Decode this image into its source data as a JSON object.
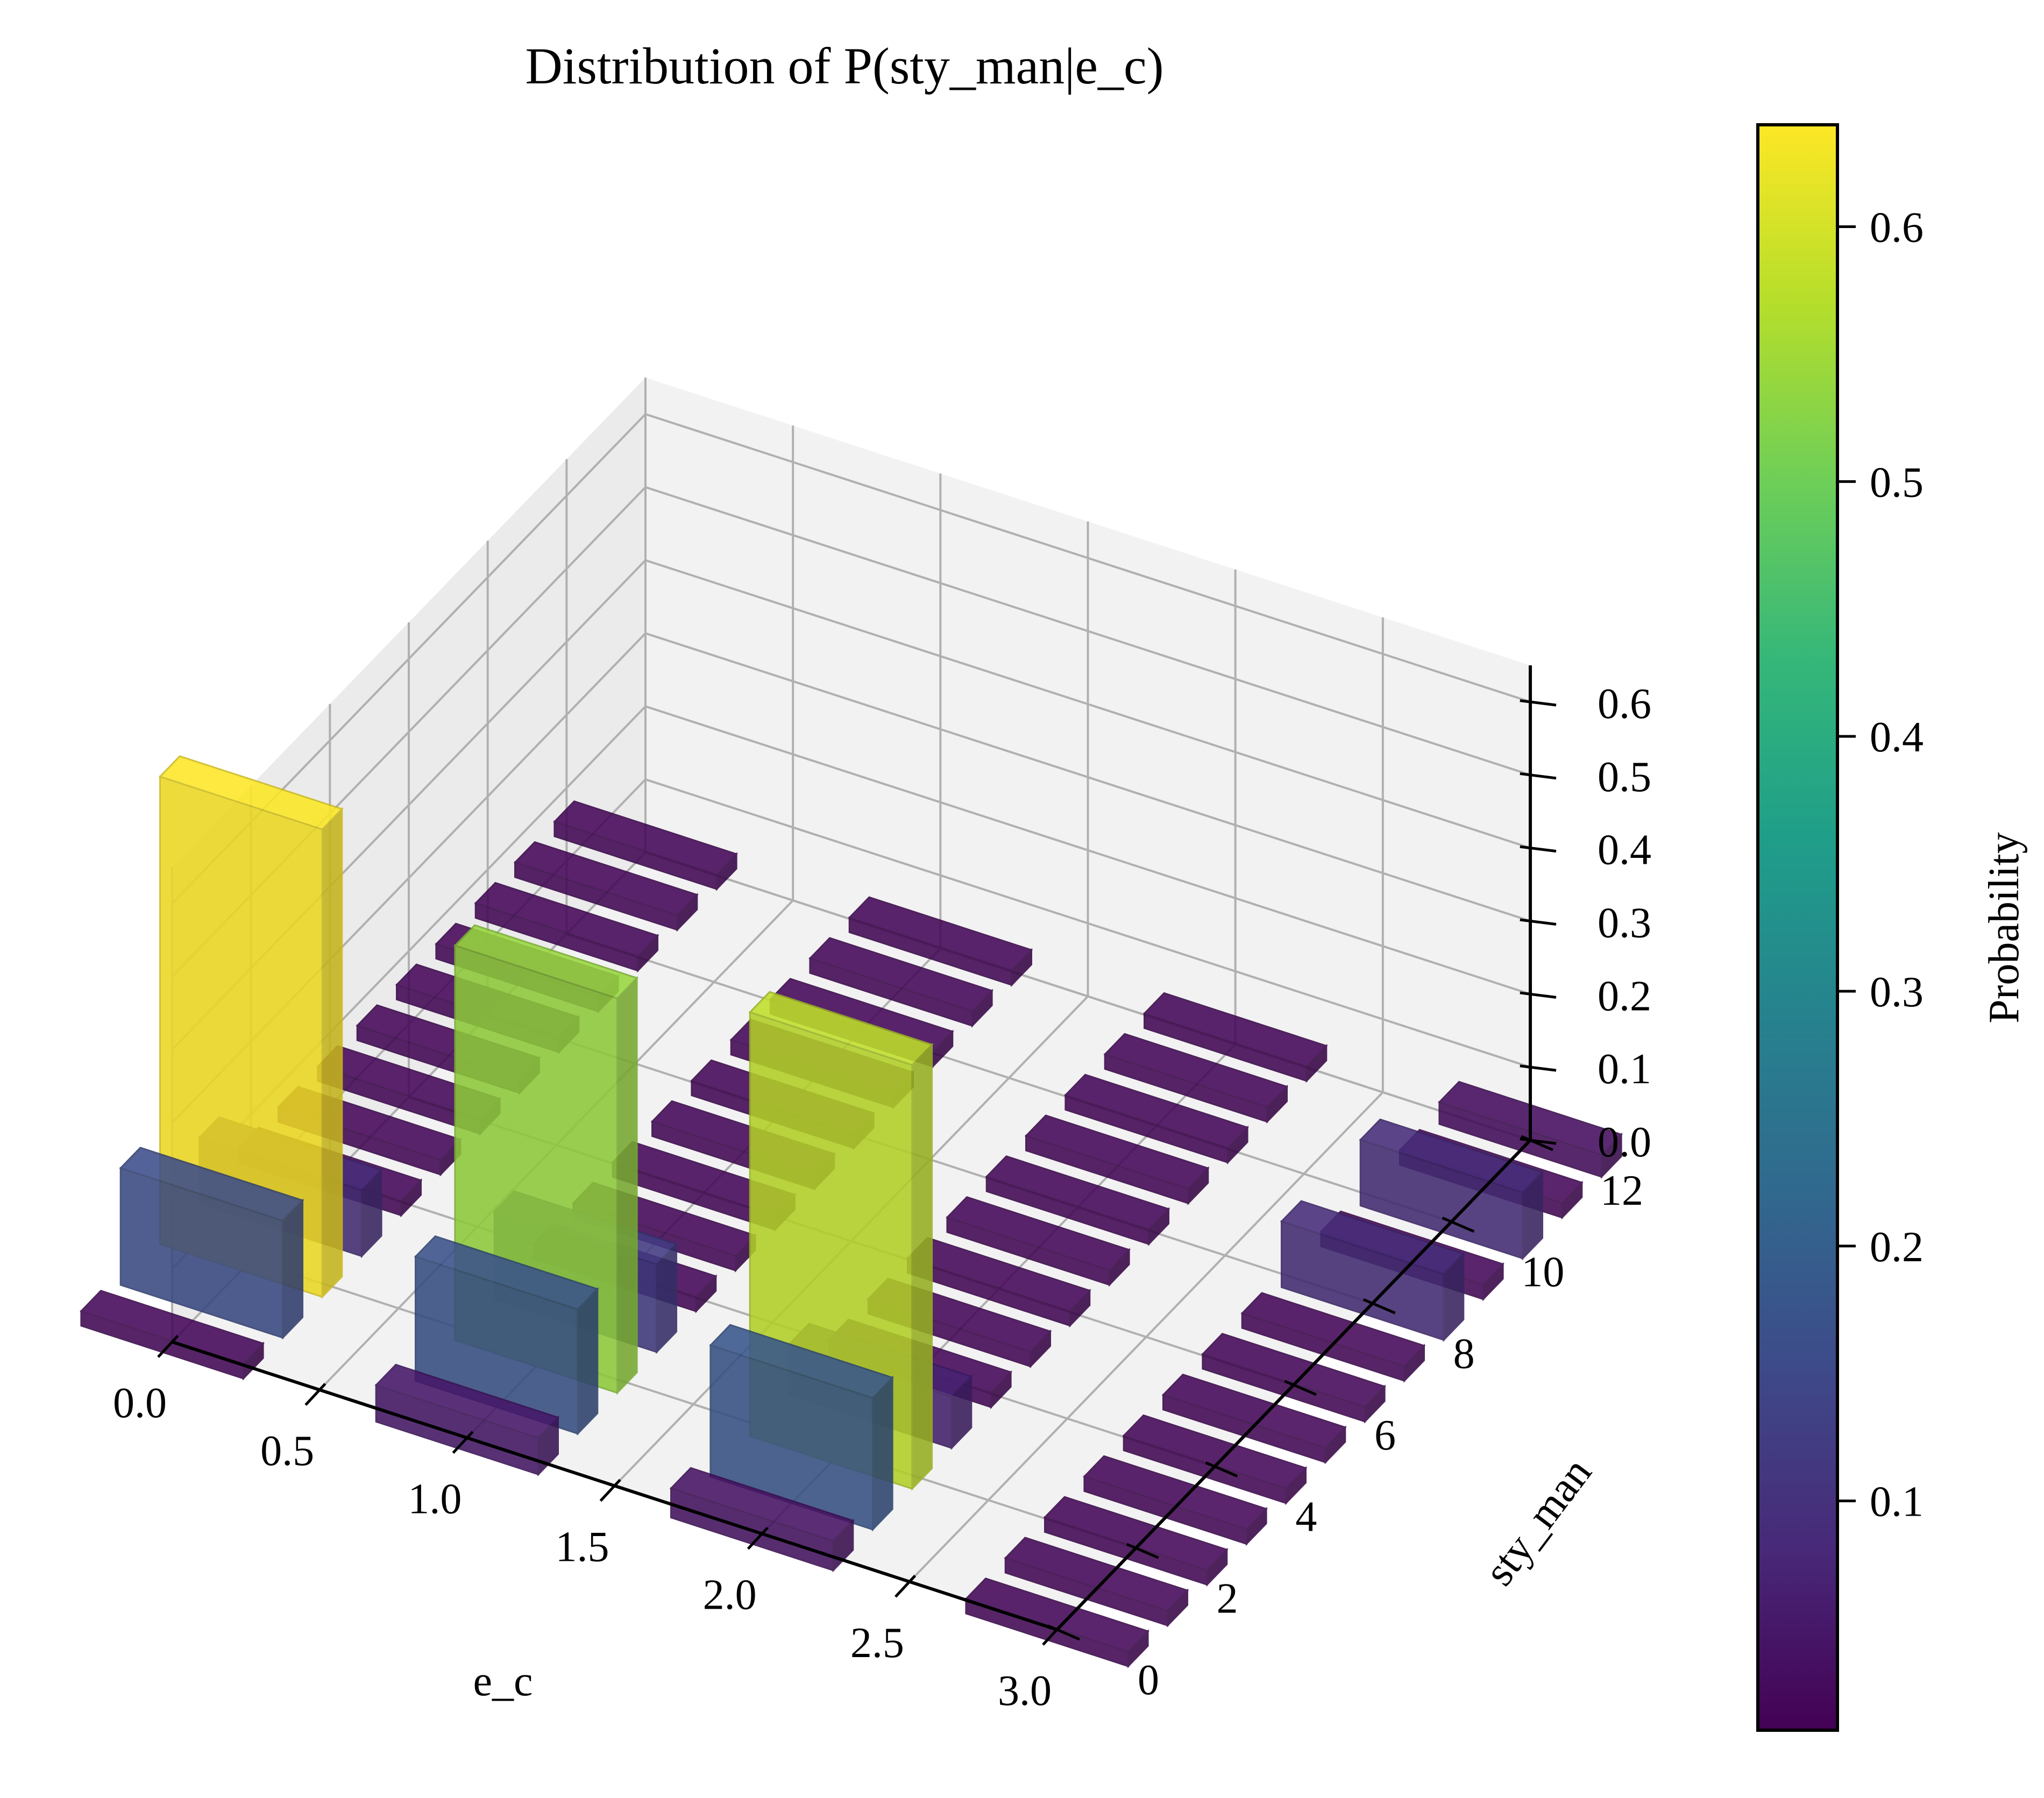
{
  "chart_data": {
    "type": "bar3d",
    "title": "Distribution of P(sty_man|e_c)",
    "xlabel": "e_c",
    "ylabel": "sty_man",
    "zlabel": "",
    "x_ticks": [
      "0.0",
      "0.5",
      "1.0",
      "1.5",
      "2.0",
      "2.5",
      "3.0"
    ],
    "y_ticks": [
      "0",
      "2",
      "4",
      "6",
      "8",
      "10",
      "12"
    ],
    "z_ticks": [
      "0.0",
      "0.1",
      "0.2",
      "0.3",
      "0.4",
      "0.5",
      "0.6"
    ],
    "xlim": [
      0,
      3
    ],
    "ylim": [
      0,
      12
    ],
    "zlim": [
      0,
      0.65
    ],
    "colorbar": {
      "label": "Probability",
      "ticks": [
        "0.1",
        "0.2",
        "0.3",
        "0.4",
        "0.5",
        "0.6"
      ],
      "tick_values": [
        0.1,
        0.2,
        0.3,
        0.4,
        0.5,
        0.6
      ],
      "range": [
        0.01,
        0.64
      ],
      "colormap": "viridis"
    },
    "series": [
      {
        "e_c": 0,
        "sty_man": [
          0,
          1,
          2,
          3,
          4,
          5,
          6,
          7,
          8,
          9,
          10,
          11,
          12
        ],
        "values": [
          0.02,
          0.16,
          0.64,
          0.09,
          0.02,
          0.02,
          0.02,
          0.02,
          0.02,
          0.02,
          0.02,
          0.02,
          0.02
        ]
      },
      {
        "e_c": 1,
        "sty_man": [
          0,
          1,
          2,
          3,
          4,
          5,
          6,
          7,
          8,
          9,
          10,
          11,
          12
        ],
        "values": [
          0.05,
          0.17,
          0.54,
          0.12,
          0.02,
          0.02,
          0.02,
          0.02,
          0.02,
          0.02,
          0.02,
          0.02,
          0.02
        ]
      },
      {
        "e_c": 2,
        "sty_man": [
          0,
          1,
          2,
          3,
          4,
          5,
          6,
          7,
          8,
          9,
          10,
          11,
          12
        ],
        "values": [
          0.04,
          0.18,
          0.58,
          0.07,
          0.02,
          0.02,
          0.02,
          0.02,
          0.02,
          0.02,
          0.02,
          0.02,
          0.02
        ]
      },
      {
        "e_c": 3,
        "sty_man": [
          0,
          1,
          2,
          3,
          4,
          5,
          6,
          7,
          8,
          9,
          10,
          11,
          12
        ],
        "values": [
          0.02,
          0.02,
          0.02,
          0.02,
          0.02,
          0.02,
          0.02,
          0.02,
          0.09,
          0.02,
          0.09,
          0.02,
          0.03
        ]
      }
    ]
  }
}
